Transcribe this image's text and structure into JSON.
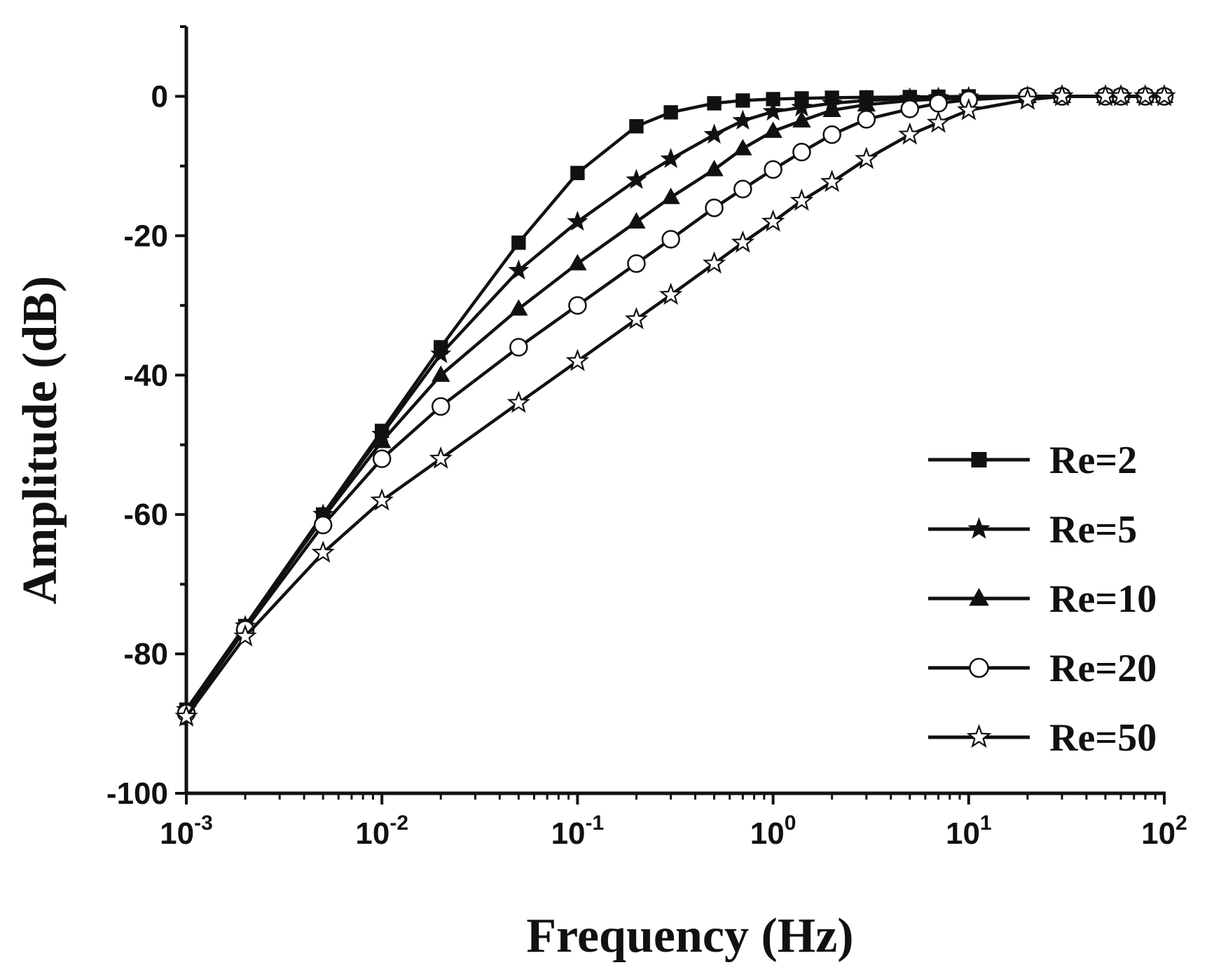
{
  "chart_data": {
    "type": "line",
    "title": "",
    "xlabel": "Frequency (Hz)",
    "ylabel": "Amplitude (dB)",
    "xscale": "log",
    "xlim": [
      0.001,
      100
    ],
    "ylim": [
      -100,
      10
    ],
    "grid": false,
    "legend_position": "right",
    "x_ticks": [
      {
        "value": 0.001,
        "base": "10",
        "exp": "-3"
      },
      {
        "value": 0.01,
        "base": "10",
        "exp": "-2"
      },
      {
        "value": 0.1,
        "base": "10",
        "exp": "-1"
      },
      {
        "value": 1,
        "base": "10",
        "exp": "0"
      },
      {
        "value": 10,
        "base": "10",
        "exp": "1"
      },
      {
        "value": 100,
        "base": "10",
        "exp": "2"
      }
    ],
    "y_ticks": [
      {
        "value": 0,
        "label": "0"
      },
      {
        "value": -20,
        "label": "-20"
      },
      {
        "value": -40,
        "label": "-40"
      },
      {
        "value": -60,
        "label": "-60"
      },
      {
        "value": -80,
        "label": "-80"
      },
      {
        "value": -100,
        "label": "-100"
      }
    ],
    "series": [
      {
        "name": "Re=2",
        "marker": "square-filled",
        "points": [
          [
            0.001,
            -88
          ],
          [
            0.002,
            -76
          ],
          [
            0.005,
            -60
          ],
          [
            0.01,
            -48
          ],
          [
            0.02,
            -36
          ],
          [
            0.05,
            -21
          ],
          [
            0.1,
            -11
          ],
          [
            0.2,
            -4.3
          ],
          [
            0.3,
            -2.3
          ],
          [
            0.5,
            -1
          ],
          [
            0.7,
            -0.6
          ],
          [
            1,
            -0.4
          ],
          [
            1.4,
            -0.3
          ],
          [
            2,
            -0.2
          ],
          [
            3,
            -0.15
          ],
          [
            5,
            -0.1
          ],
          [
            7,
            -0.05
          ],
          [
            10,
            0
          ],
          [
            20,
            0
          ],
          [
            30,
            0
          ],
          [
            50,
            0
          ],
          [
            60,
            0
          ],
          [
            80,
            0
          ],
          [
            100,
            0
          ]
        ]
      },
      {
        "name": "Re=5",
        "marker": "star-filled",
        "points": [
          [
            0.001,
            -88
          ],
          [
            0.002,
            -76
          ],
          [
            0.005,
            -60
          ],
          [
            0.01,
            -48.5
          ],
          [
            0.02,
            -37
          ],
          [
            0.05,
            -25
          ],
          [
            0.1,
            -18
          ],
          [
            0.2,
            -12
          ],
          [
            0.3,
            -9
          ],
          [
            0.5,
            -5.5
          ],
          [
            0.7,
            -3.5
          ],
          [
            1,
            -2.2
          ],
          [
            1.4,
            -1.6
          ],
          [
            2,
            -1
          ],
          [
            3,
            -0.6
          ],
          [
            5,
            -0.3
          ],
          [
            7,
            -0.2
          ],
          [
            10,
            -0.1
          ],
          [
            20,
            0
          ],
          [
            30,
            0
          ],
          [
            50,
            0
          ],
          [
            60,
            0
          ],
          [
            80,
            0
          ],
          [
            100,
            0
          ]
        ]
      },
      {
        "name": "Re=10",
        "marker": "triangle-filled",
        "points": [
          [
            0.001,
            -88
          ],
          [
            0.002,
            -76
          ],
          [
            0.005,
            -60.5
          ],
          [
            0.01,
            -49.5
          ],
          [
            0.02,
            -40
          ],
          [
            0.05,
            -30.5
          ],
          [
            0.1,
            -24
          ],
          [
            0.2,
            -18
          ],
          [
            0.3,
            -14.5
          ],
          [
            0.5,
            -10.5
          ],
          [
            0.7,
            -7.5
          ],
          [
            1,
            -5
          ],
          [
            1.4,
            -3.5
          ],
          [
            2,
            -2
          ],
          [
            3,
            -1.2
          ],
          [
            5,
            -0.6
          ],
          [
            7,
            -0.4
          ],
          [
            10,
            -0.2
          ],
          [
            20,
            0
          ],
          [
            30,
            0
          ],
          [
            50,
            0
          ],
          [
            60,
            0
          ],
          [
            80,
            0
          ],
          [
            100,
            0
          ]
        ]
      },
      {
        "name": "Re=20",
        "marker": "circle-open",
        "points": [
          [
            0.001,
            -88.5
          ],
          [
            0.002,
            -76.5
          ],
          [
            0.005,
            -61.5
          ],
          [
            0.01,
            -52
          ],
          [
            0.02,
            -44.5
          ],
          [
            0.05,
            -36
          ],
          [
            0.1,
            -30
          ],
          [
            0.2,
            -24
          ],
          [
            0.3,
            -20.5
          ],
          [
            0.5,
            -16
          ],
          [
            0.7,
            -13.3
          ],
          [
            1,
            -10.5
          ],
          [
            1.4,
            -8
          ],
          [
            2,
            -5.5
          ],
          [
            3,
            -3.3
          ],
          [
            5,
            -1.8
          ],
          [
            7,
            -1
          ],
          [
            10,
            -0.5
          ],
          [
            20,
            0
          ],
          [
            30,
            0
          ],
          [
            50,
            0
          ],
          [
            60,
            0
          ],
          [
            80,
            0
          ],
          [
            100,
            0
          ]
        ]
      },
      {
        "name": "Re=50",
        "marker": "star-open",
        "points": [
          [
            0.001,
            -89
          ],
          [
            0.002,
            -77.5
          ],
          [
            0.005,
            -65.5
          ],
          [
            0.01,
            -58
          ],
          [
            0.02,
            -52
          ],
          [
            0.05,
            -44
          ],
          [
            0.1,
            -38
          ],
          [
            0.2,
            -32
          ],
          [
            0.3,
            -28.5
          ],
          [
            0.5,
            -24
          ],
          [
            0.7,
            -21
          ],
          [
            1,
            -18
          ],
          [
            1.4,
            -15
          ],
          [
            2,
            -12.3
          ],
          [
            3,
            -9
          ],
          [
            5,
            -5.5
          ],
          [
            7,
            -3.8
          ],
          [
            10,
            -2
          ],
          [
            20,
            -0.5
          ],
          [
            30,
            0
          ],
          [
            50,
            0
          ],
          [
            60,
            0
          ],
          [
            80,
            0
          ],
          [
            100,
            0
          ]
        ]
      }
    ]
  }
}
